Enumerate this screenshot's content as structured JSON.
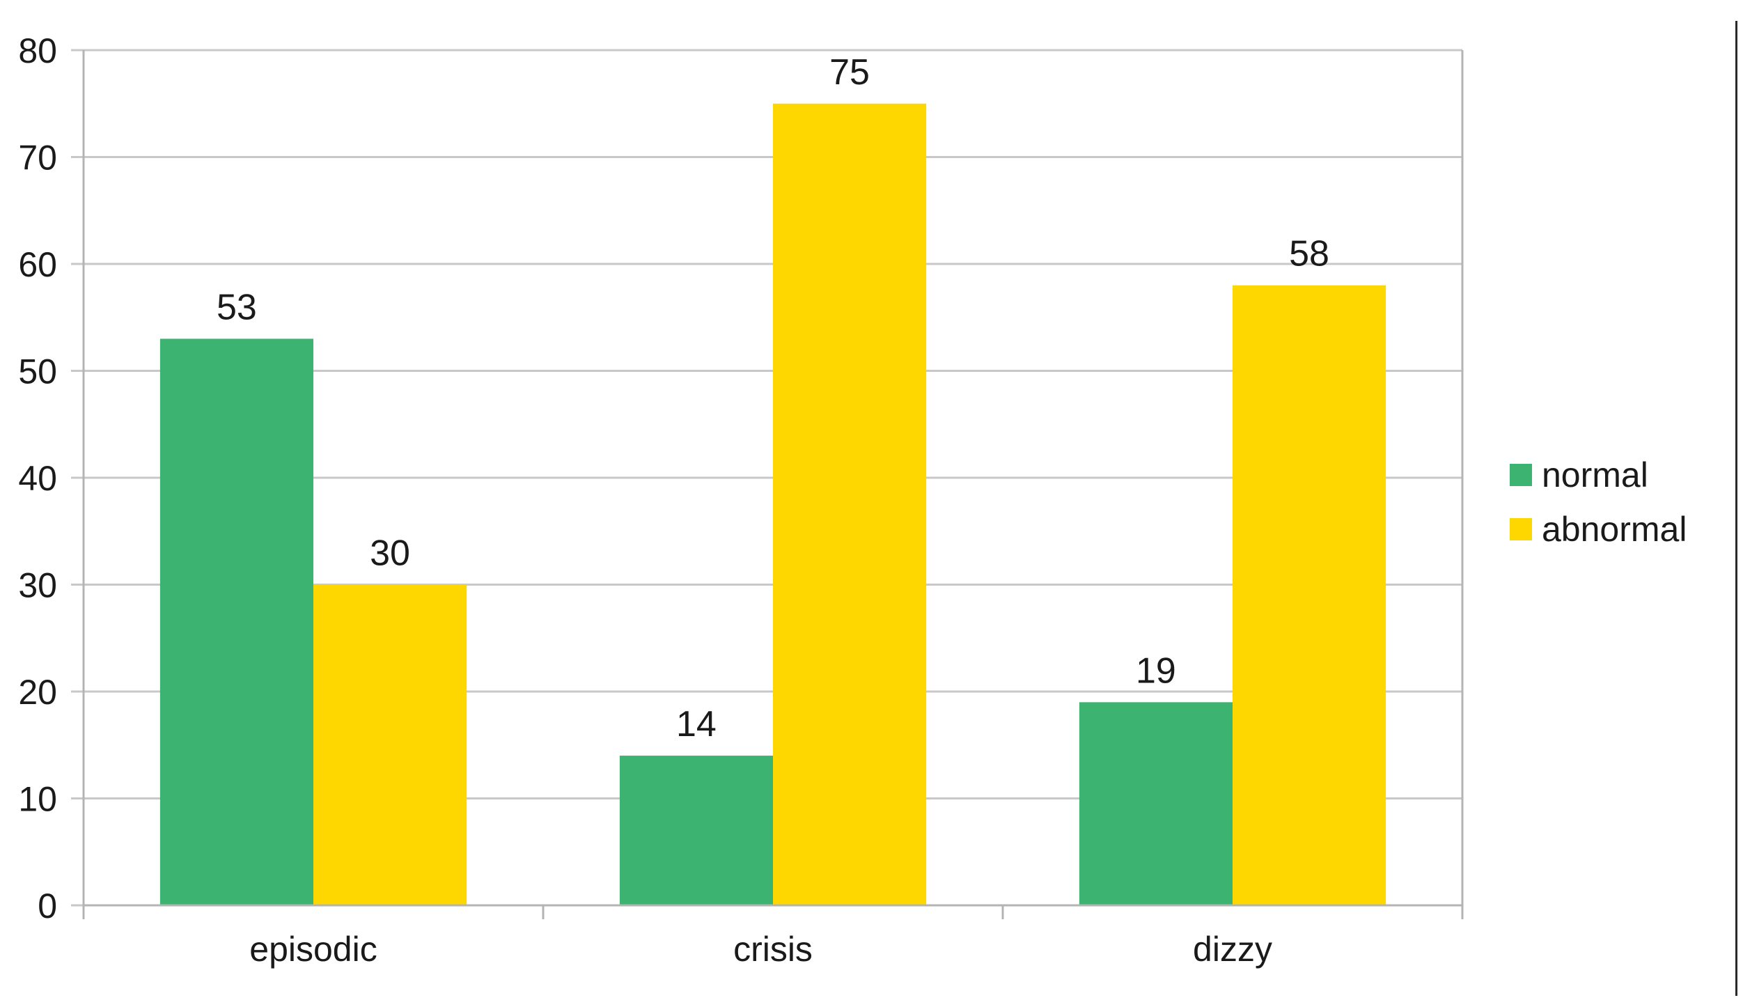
{
  "chart_data": {
    "type": "bar",
    "categories": [
      "episodic",
      "crisis",
      "dizzy"
    ],
    "series": [
      {
        "name": "normal",
        "values": [
          53,
          14,
          19
        ],
        "color": "#3cb371"
      },
      {
        "name": "abnormal",
        "values": [
          30,
          75,
          58
        ],
        "color": "#ffd700"
      }
    ],
    "title": "",
    "xlabel": "",
    "ylabel": "",
    "ylim": [
      0,
      80
    ],
    "yticks": [
      0,
      10,
      20,
      30,
      40,
      50,
      60,
      70,
      80
    ],
    "grid": true,
    "legend_position": "right",
    "data_labels": true,
    "gridline_color": "#c8c8c8",
    "axis_color": "#b4b4b4"
  }
}
